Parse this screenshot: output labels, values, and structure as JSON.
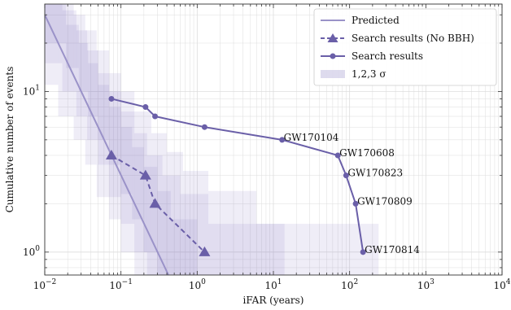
{
  "chart_data": {
    "type": "line",
    "xlabel": "iFAR (years)",
    "ylabel": "Cumulative number of events",
    "xscale": "log",
    "yscale": "log",
    "xlim": [
      0.01,
      10000
    ],
    "ylim": [
      0.72,
      35
    ],
    "grid": true,
    "legend_position": "top-right",
    "colors": {
      "main": "#6a5fa8",
      "predicted": "#9a92c8",
      "band": "#7b6fbd"
    },
    "x_ticks": [
      {
        "value": 0.01,
        "base": "10",
        "exp": "−2"
      },
      {
        "value": 0.1,
        "base": "10",
        "exp": "−1"
      },
      {
        "value": 1,
        "base": "10",
        "exp": "0"
      },
      {
        "value": 10,
        "base": "10",
        "exp": "1"
      },
      {
        "value": 100,
        "base": "10",
        "exp": "2"
      },
      {
        "value": 1000,
        "base": "10",
        "exp": "3"
      },
      {
        "value": 10000,
        "base": "10",
        "exp": "4"
      }
    ],
    "y_ticks": [
      {
        "value": 1,
        "base": "10",
        "exp": "0"
      },
      {
        "value": 10,
        "base": "10",
        "exp": "1"
      }
    ],
    "legend": [
      {
        "key": "predicted",
        "label": "Predicted"
      },
      {
        "key": "nobbh",
        "label": "Search results (No BBH)"
      },
      {
        "key": "search",
        "label": "Search results"
      },
      {
        "key": "band",
        "label": "1,2,3 σ"
      }
    ],
    "predicted": {
      "x": [
        0.01,
        0.42
      ],
      "y": [
        30,
        0.72
      ]
    },
    "series": [
      {
        "key": "search",
        "style": "solid",
        "marker": "circle",
        "x": [
          0.075,
          0.21,
          0.28,
          1.25,
          13,
          70,
          90,
          120,
          150
        ],
        "y": [
          9,
          8,
          7,
          6,
          5,
          4,
          3,
          2,
          1
        ],
        "labels": [
          "",
          "",
          "",
          "",
          "GW170104",
          "GW170608",
          "GW170823",
          "GW170809",
          "GW170814"
        ]
      },
      {
        "key": "nobbh",
        "style": "dashed",
        "marker": "triangle",
        "x": [
          0.075,
          0.21,
          0.28,
          1.25
        ],
        "y": [
          4,
          3,
          2,
          1
        ]
      }
    ],
    "sigma_bands": [
      [
        {
          "x0": 0.01,
          "x1": 0.019,
          "y0": 20,
          "y1": 40
        },
        {
          "x0": 0.019,
          "x1": 0.028,
          "y0": 14,
          "y1": 26
        },
        {
          "x0": 0.028,
          "x1": 0.037,
          "y0": 10,
          "y1": 20
        },
        {
          "x0": 0.037,
          "x1": 0.05,
          "y0": 7,
          "y1": 15
        },
        {
          "x0": 0.05,
          "x1": 0.07,
          "y0": 5,
          "y1": 11
        },
        {
          "x0": 0.07,
          "x1": 0.1,
          "y0": 3.5,
          "y1": 8
        },
        {
          "x0": 0.1,
          "x1": 0.14,
          "y0": 2.3,
          "y1": 6
        },
        {
          "x0": 0.14,
          "x1": 0.2,
          "y0": 1.6,
          "y1": 4.5
        },
        {
          "x0": 0.2,
          "x1": 0.3,
          "y0": 1,
          "y1": 3.4
        },
        {
          "x0": 0.3,
          "x1": 0.45,
          "y0": 0.72,
          "y1": 2.4
        },
        {
          "x0": 0.45,
          "x1": 1,
          "y0": 0.72,
          "y1": 1.6
        }
      ],
      [
        {
          "x0": 0.01,
          "x1": 0.017,
          "y0": 15,
          "y1": 40
        },
        {
          "x0": 0.017,
          "x1": 0.026,
          "y0": 10,
          "y1": 32
        },
        {
          "x0": 0.026,
          "x1": 0.036,
          "y0": 7,
          "y1": 24
        },
        {
          "x0": 0.036,
          "x1": 0.05,
          "y0": 5,
          "y1": 18
        },
        {
          "x0": 0.05,
          "x1": 0.07,
          "y0": 3.5,
          "y1": 13
        },
        {
          "x0": 0.07,
          "x1": 0.1,
          "y0": 2.2,
          "y1": 10
        },
        {
          "x0": 0.1,
          "x1": 0.15,
          "y0": 1.5,
          "y1": 7.5
        },
        {
          "x0": 0.15,
          "x1": 0.22,
          "y0": 1,
          "y1": 5.5
        },
        {
          "x0": 0.22,
          "x1": 0.35,
          "y0": 0.72,
          "y1": 4
        },
        {
          "x0": 0.35,
          "x1": 0.6,
          "y0": 0.72,
          "y1": 3
        },
        {
          "x0": 0.6,
          "x1": 1.4,
          "y0": 0.72,
          "y1": 2.3
        },
        {
          "x0": 1.4,
          "x1": 14,
          "y0": 0.72,
          "y1": 1.5
        }
      ],
      [
        {
          "x0": 0.01,
          "x1": 0.015,
          "y0": 11,
          "y1": 40
        },
        {
          "x0": 0.015,
          "x1": 0.024,
          "y0": 7,
          "y1": 40
        },
        {
          "x0": 0.024,
          "x1": 0.034,
          "y0": 5,
          "y1": 30
        },
        {
          "x0": 0.034,
          "x1": 0.048,
          "y0": 3.5,
          "y1": 24
        },
        {
          "x0": 0.048,
          "x1": 0.07,
          "y0": 2.2,
          "y1": 18
        },
        {
          "x0": 0.07,
          "x1": 0.1,
          "y0": 1.6,
          "y1": 13
        },
        {
          "x0": 0.1,
          "x1": 0.15,
          "y0": 1,
          "y1": 10
        },
        {
          "x0": 0.15,
          "x1": 0.25,
          "y0": 0.72,
          "y1": 7.5
        },
        {
          "x0": 0.25,
          "x1": 0.4,
          "y0": 0.72,
          "y1": 5.5
        },
        {
          "x0": 0.4,
          "x1": 0.65,
          "y0": 0.72,
          "y1": 4.2
        },
        {
          "x0": 0.65,
          "x1": 1.4,
          "y0": 0.72,
          "y1": 3.2
        },
        {
          "x0": 1.4,
          "x1": 6,
          "y0": 0.72,
          "y1": 2.4
        },
        {
          "x0": 6,
          "x1": 240,
          "y0": 0.72,
          "y1": 1.5
        }
      ]
    ]
  }
}
